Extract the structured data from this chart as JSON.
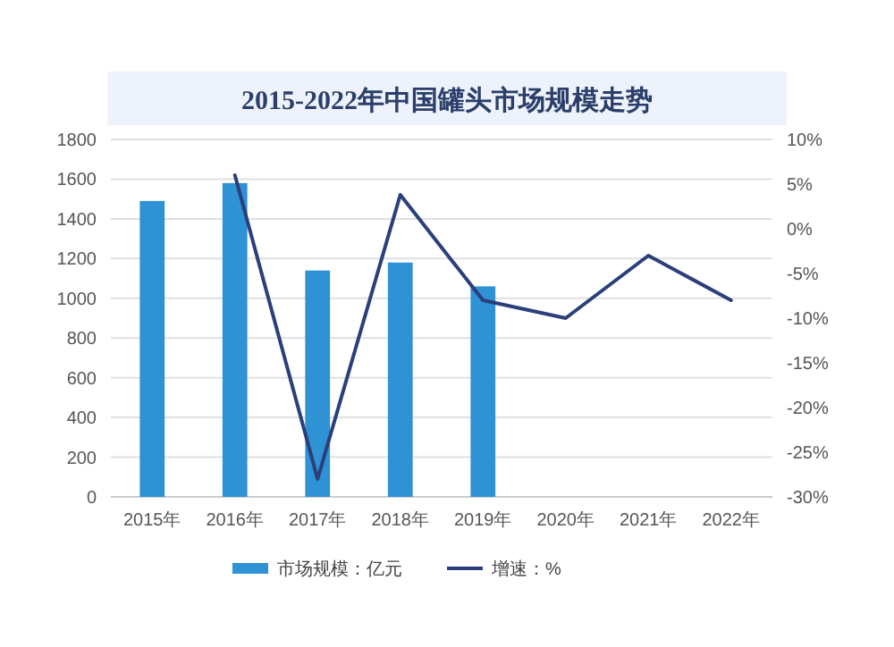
{
  "chart_data": {
    "type": "bar",
    "title": "2015-2022年中国罐头市场规模走势",
    "categories": [
      "2015年",
      "2016年",
      "2017年",
      "2018年",
      "2019年",
      "2020年",
      "2021年",
      "2022年"
    ],
    "series": [
      {
        "name": "市场规模：亿元",
        "color": "#2e92d4",
        "values": [
          1490,
          1580,
          1140,
          1180,
          1060,
          null,
          null,
          null
        ]
      },
      {
        "name": "增速：%",
        "type": "line",
        "axis": "y2",
        "color": "#2b3f7a",
        "values": [
          null,
          6,
          -28,
          3.8,
          -8,
          -10,
          -3,
          -8
        ]
      }
    ],
    "ylim": [
      0,
      1800
    ],
    "yticks": [
      0,
      200,
      400,
      600,
      800,
      1000,
      1200,
      1400,
      1600,
      1800
    ],
    "y2lim": [
      -30,
      10
    ],
    "y2ticks": [
      {
        "value": -30,
        "label": "-30%"
      },
      {
        "value": -25,
        "label": "-25%"
      },
      {
        "value": -20,
        "label": "-20%"
      },
      {
        "value": -15,
        "label": "-15%"
      },
      {
        "value": -10,
        "label": "-10%"
      },
      {
        "value": -5,
        "label": "-5%"
      },
      {
        "value": 0,
        "label": "0%"
      },
      {
        "value": 5,
        "label": "5%"
      },
      {
        "value": 10,
        "label": "10%"
      }
    ],
    "grid": "y",
    "legend": "bottom",
    "marker": "none",
    "line_style": "solid"
  }
}
